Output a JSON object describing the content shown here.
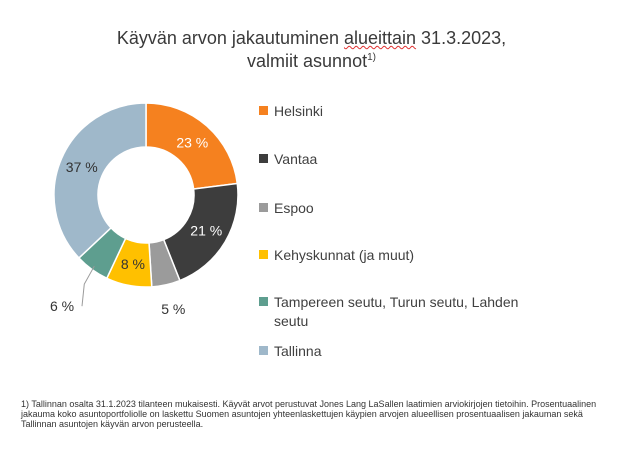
{
  "title": {
    "line1_a": "Käyvän arvon jakautuminen ",
    "line1_b": "alueittain",
    "line1_c": " 31.3.2023,",
    "line2": "valmiit asunnot",
    "line2_sup": "1)"
  },
  "chart_data": {
    "type": "pie",
    "variant": "doughnut",
    "title": "Käyvän arvon jakautuminen alueittain 31.3.2023, valmiit asunnot",
    "legend_position": "right",
    "slices": [
      {
        "label": "Helsinki",
        "value": 23,
        "display": "23 %",
        "color": "#f5811f",
        "label_color": "#ffffff"
      },
      {
        "label": "Vantaa",
        "value": 21,
        "display": "21 %",
        "color": "#3d3d3d",
        "label_color": "#ffffff"
      },
      {
        "label": "Espoo",
        "value": 5,
        "display": "5 %",
        "color": "#9b9b9b",
        "label_color": "#333333"
      },
      {
        "label": "Kehyskunnat (ja muut)",
        "value": 8,
        "display": "8 %",
        "color": "#ffc000",
        "label_color": "#333333"
      },
      {
        "label": "Tampereen seutu, Turun seutu, Lahden seutu",
        "value": 6,
        "display": "6 %",
        "color": "#5e9e8f",
        "label_color": "#333333"
      },
      {
        "label": "Tallinna",
        "value": 37,
        "display": "37 %",
        "color": "#9fb8ca",
        "label_color": "#333333"
      }
    ]
  },
  "legend": [
    {
      "label": "Helsinki",
      "color": "#f5811f"
    },
    {
      "label": "Vantaa",
      "color": "#3d3d3d"
    },
    {
      "label": "Espoo",
      "color": "#9b9b9b"
    },
    {
      "label": "Kehyskunnat (ja muut)",
      "color": "#ffc000"
    },
    {
      "label": "Tampereen seutu, Turun seutu, Lahden seutu",
      "color": "#5e9e8f"
    },
    {
      "label": "Tallinna",
      "color": "#9fb8ca"
    }
  ],
  "footnote": "1) Tallinnan osalta 31.1.2023 tilanteen mukaisesti. Käyvät arvot perustuvat Jones Lang LaSallen laatimien arviokirjojen tietoihin. Prosentuaalinen jakauma koko asuntoportfoliolle on laskettu Suomen asuntojen yhteenlaskettujen käypien arvojen alueellisen prosentuaalisen jakauman sekä Tallinnan asuntojen käyvän arvon perusteella."
}
